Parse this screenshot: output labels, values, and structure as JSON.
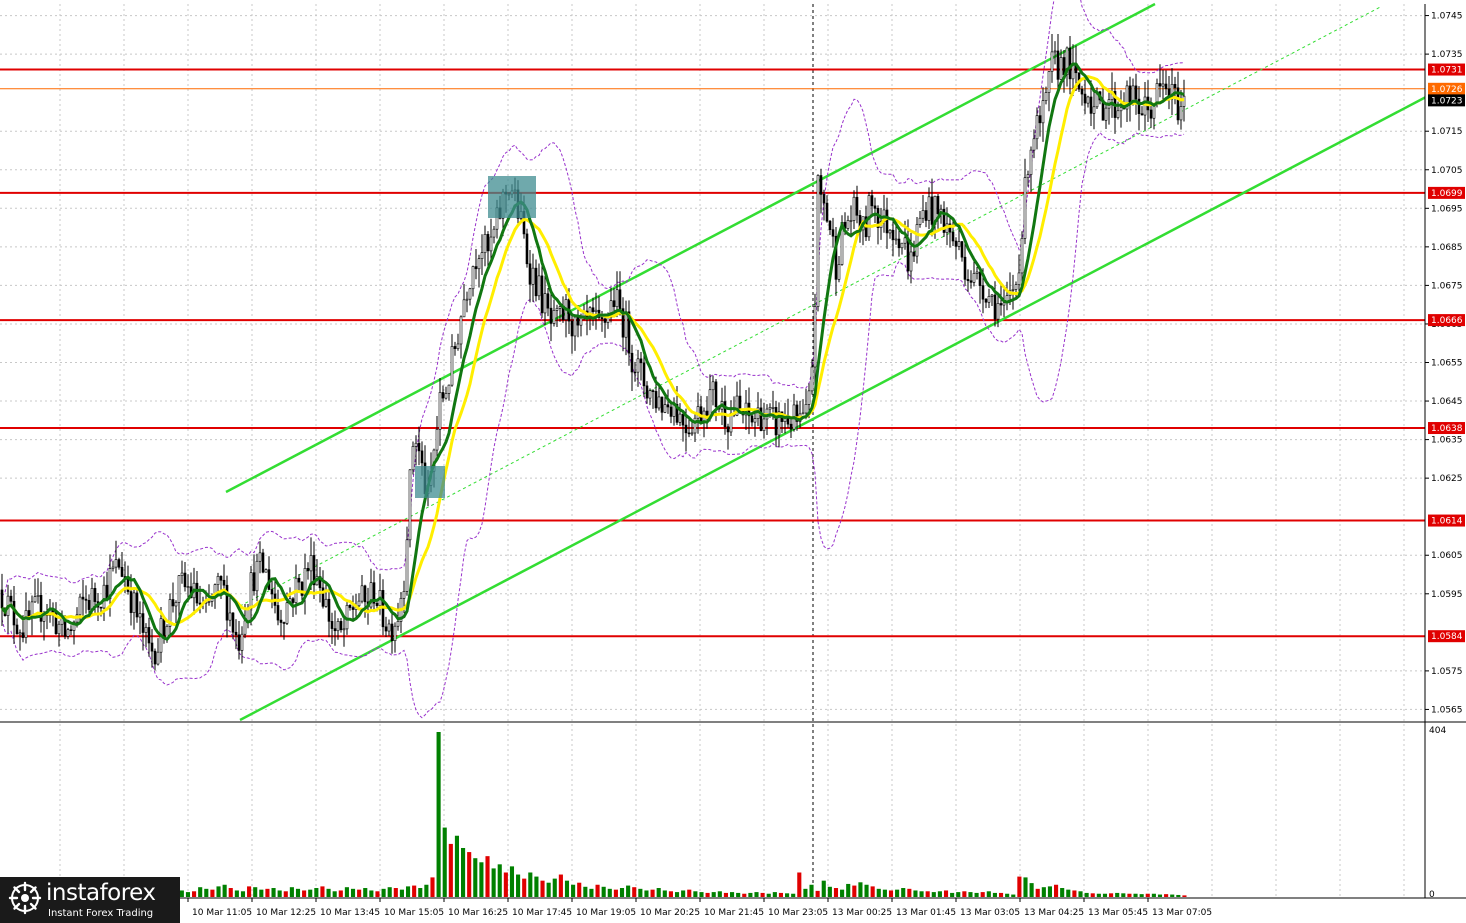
{
  "chart_data": {
    "type": "candlestick",
    "title": "",
    "price_axis": {
      "range": [
        1.0562,
        1.0748
      ],
      "tick_labels": [
        "1.0745",
        "1.0735",
        "1.0715",
        "1.0705",
        "1.0695",
        "1.0685",
        "1.0675",
        "1.0665",
        "1.0655",
        "1.0645",
        "1.0635",
        "1.0625",
        "1.0605",
        "1.0595",
        "1.0575",
        "1.0565"
      ]
    },
    "time_axis": {
      "tick_labels": [
        "10 Mar 11:05",
        "10 Mar 12:25",
        "10 Mar 13:45",
        "10 Mar 15:05",
        "10 Mar 16:25",
        "10 Mar 17:45",
        "10 Mar 19:05",
        "10 Mar 20:25",
        "10 Mar 21:45",
        "10 Mar 23:05",
        "13 Mar 00:25",
        "13 Mar 01:45",
        "13 Mar 03:05",
        "13 Mar 04:25",
        "13 Mar 05:45",
        "13 Mar 07:05"
      ]
    },
    "levels": [
      {
        "value": 1.0731,
        "label": "1.0731",
        "color": "#e00000"
      },
      {
        "value": 1.0699,
        "label": "1.0699",
        "color": "#e00000"
      },
      {
        "value": 1.0666,
        "label": "1.0666",
        "color": "#e00000"
      },
      {
        "value": 1.0638,
        "label": "1.0638",
        "color": "#e00000"
      },
      {
        "value": 1.0614,
        "label": "1.0614",
        "color": "#e00000"
      },
      {
        "value": 1.0584,
        "label": "1.0584",
        "color": "#e00000"
      }
    ],
    "bid_line": {
      "value": 1.0726,
      "label": "1.0726",
      "color": "#ff6a00"
    },
    "current_price": {
      "value": 1.0723,
      "label": "1.0723"
    },
    "price_path": [
      [
        0,
        1.0596
      ],
      [
        8,
        1.0592
      ],
      [
        16,
        1.0588
      ],
      [
        24,
        1.0586
      ],
      [
        34,
        1.059
      ],
      [
        44,
        1.0592
      ],
      [
        54,
        1.0589
      ],
      [
        64,
        1.0584
      ],
      [
        74,
        1.0587
      ],
      [
        84,
        1.0593
      ],
      [
        94,
        1.0594
      ],
      [
        104,
        1.0596
      ],
      [
        112,
        1.06
      ],
      [
        120,
        1.0603
      ],
      [
        128,
        1.0597
      ],
      [
        136,
        1.059
      ],
      [
        144,
        1.0584
      ],
      [
        150,
        1.058
      ],
      [
        158,
        1.0582
      ],
      [
        166,
        1.0589
      ],
      [
        174,
        1.0594
      ],
      [
        182,
        1.0597
      ],
      [
        190,
        1.0596
      ],
      [
        198,
        1.0593
      ],
      [
        206,
        1.0589
      ],
      [
        214,
        1.0595
      ],
      [
        222,
        1.0597
      ],
      [
        230,
        1.059
      ],
      [
        238,
        1.0582
      ],
      [
        246,
        1.0593
      ],
      [
        254,
        1.06
      ],
      [
        262,
        1.0602
      ],
      [
        270,
        1.0598
      ],
      [
        278,
        1.0589
      ],
      [
        286,
        1.0592
      ],
      [
        294,
        1.0596
      ],
      [
        302,
        1.0598
      ],
      [
        310,
        1.0603
      ],
      [
        318,
        1.06
      ],
      [
        326,
        1.0592
      ],
      [
        334,
        1.0585
      ],
      [
        342,
        1.0584
      ],
      [
        350,
        1.059
      ],
      [
        358,
        1.0594
      ],
      [
        366,
        1.0592
      ],
      [
        374,
        1.0596
      ],
      [
        382,
        1.059
      ],
      [
        390,
        1.0586
      ],
      [
        398,
        1.059
      ],
      [
        404,
        1.06
      ],
      [
        408,
        1.0616
      ],
      [
        414,
        1.0638
      ],
      [
        420,
        1.063
      ],
      [
        428,
        1.0619
      ],
      [
        434,
        1.0632
      ],
      [
        440,
        1.0644
      ],
      [
        448,
        1.065
      ],
      [
        456,
        1.066
      ],
      [
        464,
        1.0672
      ],
      [
        472,
        1.068
      ],
      [
        480,
        1.0686
      ],
      [
        488,
        1.0683
      ],
      [
        496,
        1.069
      ],
      [
        504,
        1.0698
      ],
      [
        510,
        1.0702
      ],
      [
        516,
        1.0696
      ],
      [
        522,
        1.069
      ],
      [
        528,
        1.0681
      ],
      [
        536,
        1.0676
      ],
      [
        544,
        1.067
      ],
      [
        552,
        1.0664
      ],
      [
        560,
        1.0666
      ],
      [
        568,
        1.0669
      ],
      [
        576,
        1.0662
      ],
      [
        584,
        1.0664
      ],
      [
        592,
        1.0666
      ],
      [
        600,
        1.0663
      ],
      [
        608,
        1.0668
      ],
      [
        614,
        1.0672
      ],
      [
        620,
        1.0668
      ],
      [
        626,
        1.0664
      ],
      [
        632,
        1.0657
      ],
      [
        640,
        1.0652
      ],
      [
        648,
        1.0648
      ],
      [
        656,
        1.0646
      ],
      [
        664,
        1.0644
      ],
      [
        672,
        1.0645
      ],
      [
        680,
        1.0641
      ],
      [
        688,
        1.0639
      ],
      [
        696,
        1.0641
      ],
      [
        704,
        1.0644
      ],
      [
        712,
        1.0647
      ],
      [
        720,
        1.0644
      ],
      [
        728,
        1.0641
      ],
      [
        736,
        1.0643
      ],
      [
        744,
        1.0641
      ],
      [
        752,
        1.064
      ],
      [
        760,
        1.0642
      ],
      [
        768,
        1.064
      ],
      [
        776,
        1.0639
      ],
      [
        784,
        1.0641
      ],
      [
        792,
        1.064
      ],
      [
        800,
        1.0639
      ],
      [
        808,
        1.0641
      ],
      [
        814,
        1.0662
      ],
      [
        818,
        1.07
      ],
      [
        824,
        1.0696
      ],
      [
        830,
        1.069
      ],
      [
        836,
        1.0681
      ],
      [
        842,
        1.0688
      ],
      [
        848,
        1.0692
      ],
      [
        856,
        1.0694
      ],
      [
        864,
        1.0688
      ],
      [
        872,
        1.0698
      ],
      [
        880,
        1.0692
      ],
      [
        888,
        1.0691
      ],
      [
        896,
        1.069
      ],
      [
        904,
        1.0686
      ],
      [
        910,
        1.068
      ],
      [
        918,
        1.069
      ],
      [
        926,
        1.0696
      ],
      [
        934,
        1.0694
      ],
      [
        942,
        1.0693
      ],
      [
        950,
        1.0688
      ],
      [
        958,
        1.0685
      ],
      [
        966,
        1.068
      ],
      [
        974,
        1.0676
      ],
      [
        982,
        1.0676
      ],
      [
        990,
        1.0672
      ],
      [
        998,
        1.067
      ],
      [
        1004,
        1.0667
      ],
      [
        1010,
        1.0672
      ],
      [
        1016,
        1.0676
      ],
      [
        1022,
        1.0689
      ],
      [
        1028,
        1.0708
      ],
      [
        1034,
        1.0715
      ],
      [
        1040,
        1.0716
      ],
      [
        1046,
        1.0722
      ],
      [
        1052,
        1.0732
      ],
      [
        1058,
        1.0732
      ],
      [
        1064,
        1.0734
      ],
      [
        1070,
        1.0731
      ],
      [
        1076,
        1.0727
      ],
      [
        1082,
        1.0725
      ],
      [
        1088,
        1.0726
      ],
      [
        1094,
        1.0721
      ],
      [
        1100,
        1.0721
      ],
      [
        1108,
        1.0724
      ],
      [
        1116,
        1.0721
      ],
      [
        1124,
        1.0724
      ],
      [
        1132,
        1.0723
      ],
      [
        1140,
        1.0721
      ],
      [
        1148,
        1.072
      ],
      [
        1156,
        1.0724
      ],
      [
        1164,
        1.0726
      ],
      [
        1172,
        1.0724
      ],
      [
        1180,
        1.0721
      ],
      [
        1186,
        1.0723
      ]
    ],
    "volume": {
      "max_label": "404",
      "min_label": "0",
      "values": [
        18,
        15,
        12,
        14,
        20,
        16,
        12,
        18,
        22,
        15,
        14,
        16,
        20,
        24,
        18,
        14,
        26,
        22,
        16,
        20,
        28,
        22,
        16,
        12,
        18,
        22,
        20,
        26,
        24,
        16,
        12,
        14,
        24,
        20,
        18,
        26,
        30,
        22,
        16,
        14,
        26,
        24,
        18,
        20,
        22,
        16,
        14,
        24,
        20,
        16,
        18,
        22,
        26,
        20,
        14,
        16,
        24,
        20,
        18,
        22,
        16,
        14,
        20,
        24,
        22,
        18,
        26,
        28,
        22,
        30,
        48,
        404,
        170,
        130,
        150,
        120,
        110,
        95,
        85,
        100,
        70,
        80,
        60,
        75,
        55,
        45,
        60,
        50,
        40,
        35,
        45,
        55,
        40,
        30,
        35,
        25,
        20,
        30,
        25,
        20,
        18,
        22,
        28,
        24,
        20,
        16,
        18,
        22,
        16,
        14,
        12,
        16,
        18,
        14,
        12,
        10,
        12,
        14,
        10,
        12,
        10,
        8,
        10,
        12,
        10,
        8,
        12,
        10,
        9,
        8,
        60,
        20,
        30,
        15,
        40,
        25,
        22,
        18,
        32,
        28,
        36,
        30,
        26,
        20,
        18,
        16,
        18,
        22,
        20,
        16,
        14,
        14,
        12,
        14,
        16,
        10,
        12,
        14,
        12,
        10,
        12,
        14,
        10,
        10,
        8,
        6,
        50,
        48,
        34,
        20,
        24,
        26,
        30,
        22,
        18,
        16,
        14,
        10,
        9,
        8,
        8,
        9,
        10,
        9,
        8,
        8,
        7,
        8,
        8,
        6,
        7,
        6,
        5,
        4
      ],
      "up_color": "#008000",
      "down_color": "#e00000"
    },
    "legend": "none",
    "grid": true
  },
  "brand": {
    "name": "instaforex",
    "tagline": "Instant Forex Trading"
  }
}
